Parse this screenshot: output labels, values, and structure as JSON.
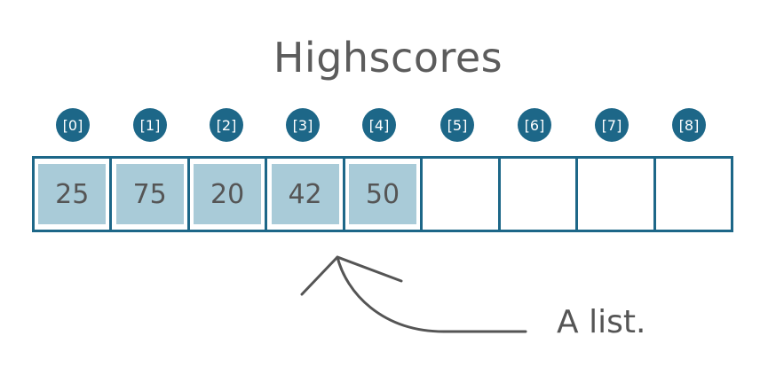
{
  "title": "Highscores",
  "indices": [
    "[0]",
    "[1]",
    "[2]",
    "[3]",
    "[4]",
    "[5]",
    "[6]",
    "[7]",
    "[8]"
  ],
  "values": [
    "25",
    "75",
    "20",
    "42",
    "50",
    "",
    "",
    "",
    ""
  ],
  "annotation": "A list.",
  "colors": {
    "accent": "#1d6788",
    "filled_cell": "#a9cbd8",
    "text": "#555555"
  }
}
